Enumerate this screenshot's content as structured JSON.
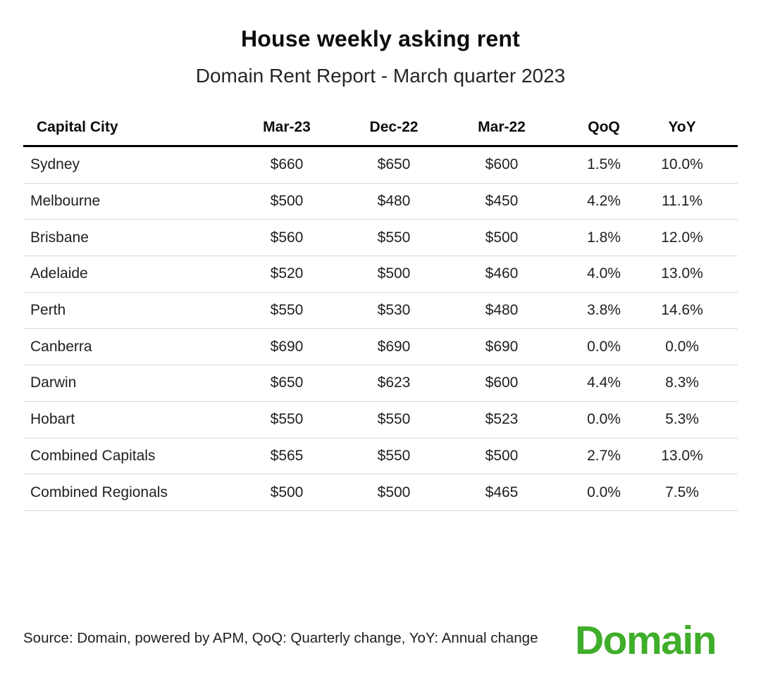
{
  "header": {
    "title": "House weekly asking rent",
    "subtitle": "Domain Rent Report - March quarter 2023"
  },
  "table": {
    "columns": [
      "Capital City",
      "Mar-23",
      "Dec-22",
      "Mar-22",
      "QoQ",
      "YoY"
    ],
    "rows": [
      {
        "city": "Sydney",
        "values": [
          "$660",
          "$650",
          "$600",
          "1.5%",
          "10.0%"
        ]
      },
      {
        "city": "Melbourne",
        "values": [
          "$500",
          "$480",
          "$450",
          "4.2%",
          "11.1%"
        ]
      },
      {
        "city": "Brisbane",
        "values": [
          "$560",
          "$550",
          "$500",
          "1.8%",
          "12.0%"
        ]
      },
      {
        "city": "Adelaide",
        "values": [
          "$520",
          "$500",
          "$460",
          "4.0%",
          "13.0%"
        ]
      },
      {
        "city": "Perth",
        "values": [
          "$550",
          "$530",
          "$480",
          "3.8%",
          "14.6%"
        ]
      },
      {
        "city": "Canberra",
        "values": [
          "$690",
          "$690",
          "$690",
          "0.0%",
          "0.0%"
        ]
      },
      {
        "city": "Darwin",
        "values": [
          "$650",
          "$623",
          "$600",
          "4.4%",
          "8.3%"
        ]
      },
      {
        "city": "Hobart",
        "values": [
          "$550",
          "$550",
          "$523",
          "0.0%",
          "5.3%"
        ]
      },
      {
        "city": "Combined Capitals",
        "values": [
          "$565",
          "$550",
          "$500",
          "2.7%",
          "13.0%"
        ]
      },
      {
        "city": "Combined Regionals",
        "values": [
          "$500",
          "$500",
          "$465",
          "0.0%",
          "7.5%"
        ]
      }
    ]
  },
  "footer": {
    "source_note": "Source: Domain, powered by APM, QoQ: Quarterly change, YoY: Annual change",
    "logo_text": "Domain"
  },
  "colors": {
    "brand_green": "#3fae2a",
    "divider": "#d9d9d9",
    "header_rule": "#000000",
    "text": "#1f1f1f"
  },
  "chart_data": {
    "type": "table",
    "title": "House weekly asking rent",
    "subtitle": "Domain Rent Report - March quarter 2023",
    "columns": [
      "Capital City",
      "Mar-23",
      "Dec-22",
      "Mar-22",
      "QoQ",
      "YoY"
    ],
    "rows": [
      [
        "Sydney",
        "$660",
        "$650",
        "$600",
        "1.5%",
        "10.0%"
      ],
      [
        "Melbourne",
        "$500",
        "$480",
        "$450",
        "4.2%",
        "11.1%"
      ],
      [
        "Brisbane",
        "$560",
        "$550",
        "$500",
        "1.8%",
        "12.0%"
      ],
      [
        "Adelaide",
        "$520",
        "$500",
        "$460",
        "4.0%",
        "13.0%"
      ],
      [
        "Perth",
        "$550",
        "$530",
        "$480",
        "3.8%",
        "14.6%"
      ],
      [
        "Canberra",
        "$690",
        "$690",
        "$690",
        "0.0%",
        "0.0%"
      ],
      [
        "Darwin",
        "$650",
        "$623",
        "$600",
        "4.4%",
        "8.3%"
      ],
      [
        "Hobart",
        "$550",
        "$550",
        "$523",
        "0.0%",
        "5.3%"
      ],
      [
        "Combined Capitals",
        "$565",
        "$550",
        "$500",
        "2.7%",
        "13.0%"
      ],
      [
        "Combined Regionals",
        "$500",
        "$500",
        "$465",
        "0.0%",
        "7.5%"
      ]
    ],
    "source": "Source: Domain, powered by APM, QoQ: Quarterly change, YoY: Annual change"
  }
}
